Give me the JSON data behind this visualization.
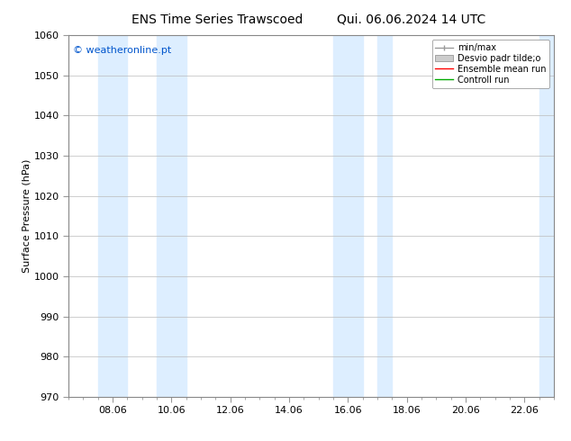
{
  "title_left": "ENS Time Series Trawscoed",
  "title_right": "Qui. 06.06.2024 14 UTC",
  "ylabel": "Surface Pressure (hPa)",
  "ylim": [
    970,
    1060
  ],
  "yticks": [
    970,
    980,
    990,
    1000,
    1010,
    1020,
    1030,
    1040,
    1050,
    1060
  ],
  "xlim_start": 6.5,
  "xlim_end": 23.0,
  "xtick_labels": [
    "08.06",
    "10.06",
    "12.06",
    "14.06",
    "16.06",
    "18.06",
    "20.06",
    "22.06"
  ],
  "xtick_positions": [
    8,
    10,
    12,
    14,
    16,
    18,
    20,
    22
  ],
  "shaded_bands": [
    {
      "x_start": 7.5,
      "x_end": 8.5
    },
    {
      "x_start": 9.5,
      "x_end": 10.5
    },
    {
      "x_start": 15.5,
      "x_end": 16.5
    },
    {
      "x_start": 17.0,
      "x_end": 17.5
    },
    {
      "x_start": 22.5,
      "x_end": 23.0
    }
  ],
  "shade_color": "#ddeeff",
  "watermark_text": "© weatheronline.pt",
  "watermark_color": "#0055cc",
  "legend_entries": [
    {
      "label": "min/max",
      "color": "#999999",
      "lw": 1.0,
      "style": "minmax"
    },
    {
      "label": "Desvio padr tilde;o",
      "color": "#cccccc",
      "lw": 5,
      "style": "band"
    },
    {
      "label": "Ensemble mean run",
      "color": "#ff0000",
      "lw": 1.0,
      "style": "line"
    },
    {
      "label": "Controll run",
      "color": "#00aa00",
      "lw": 1.0,
      "style": "line"
    }
  ],
  "bg_color": "#ffffff",
  "grid_color": "#bbbbbb",
  "title_fontsize": 10,
  "label_fontsize": 8,
  "tick_fontsize": 8,
  "watermark_fontsize": 8
}
